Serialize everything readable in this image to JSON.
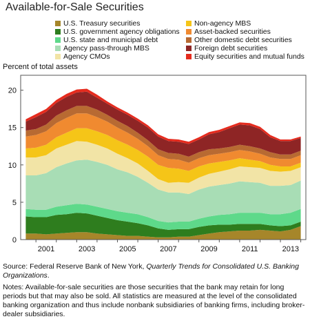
{
  "title": "Available-for-Sale Securities",
  "source_prefix": "Source: Federal Reserve Bank of New York, ",
  "source_title": "Quarterly Trends for Consolidated U.S. Banking Organizations",
  "source_suffix": ".",
  "notes": "Notes: Available-for-sale securities are those securities that the bank may retain for long periods but that may also be sold. All statistics are measured at the level of the consolidated banking organization and thus include nonbank subsidiaries of banking firms, including broker-dealer subsidiaries.",
  "chart_data": {
    "type": "area",
    "stacked": true,
    "title": "Available-for-Sale Securities",
    "ylabel": "Percent of total assets",
    "xlabel": "",
    "ylim": [
      0,
      22
    ],
    "yticks": [
      0,
      5,
      10,
      15,
      20
    ],
    "xlim": [
      2000.25,
      2014.25
    ],
    "xticks": [
      2001,
      2003,
      2005,
      2007,
      2009,
      2011,
      2013
    ],
    "grid": false,
    "legend_position": "top",
    "x": [
      2000.5,
      2001.0,
      2001.5,
      2002.0,
      2002.5,
      2003.0,
      2003.5,
      2004.0,
      2004.5,
      2005.0,
      2005.5,
      2006.0,
      2006.5,
      2007.0,
      2007.5,
      2008.0,
      2008.5,
      2009.0,
      2009.5,
      2010.0,
      2010.5,
      2011.0,
      2011.5,
      2012.0,
      2012.5,
      2013.0,
      2013.5,
      2014.0
    ],
    "series": [
      {
        "name": "U.S. Treasury securities",
        "color": "#a6862a",
        "values": [
          0.8,
          0.8,
          0.7,
          0.8,
          0.9,
          1.0,
          1.0,
          0.8,
          0.7,
          0.6,
          0.5,
          0.5,
          0.4,
          0.3,
          0.3,
          0.4,
          0.4,
          0.6,
          0.8,
          1.0,
          1.1,
          1.2,
          1.2,
          1.3,
          1.2,
          1.1,
          1.3,
          1.8
        ]
      },
      {
        "name": "U.S. government agency obligations",
        "color": "#2e7d1e",
        "values": [
          2.3,
          2.2,
          2.3,
          2.5,
          2.5,
          2.6,
          2.5,
          2.4,
          2.2,
          2.0,
          1.9,
          1.7,
          1.5,
          1.2,
          1.0,
          1.0,
          1.0,
          1.1,
          1.1,
          1.0,
          0.9,
          0.9,
          0.9,
          0.8,
          0.7,
          0.7,
          0.6,
          0.6
        ]
      },
      {
        "name": "U.S. state and municipal debt",
        "color": "#5ed98a",
        "values": [
          1.0,
          1.0,
          1.0,
          1.1,
          1.2,
          1.2,
          1.2,
          1.2,
          1.2,
          1.2,
          1.2,
          1.2,
          1.1,
          1.0,
          1.0,
          1.0,
          1.0,
          1.1,
          1.2,
          1.3,
          1.4,
          1.5,
          1.5,
          1.5,
          1.5,
          1.6,
          1.7,
          1.7
        ]
      },
      {
        "name": "Agency pass-through MBS",
        "color": "#a8ddb5",
        "values": [
          4.5,
          4.6,
          4.9,
          5.3,
          5.6,
          5.8,
          6.0,
          6.0,
          5.9,
          5.6,
          5.4,
          5.0,
          4.6,
          4.2,
          4.0,
          3.9,
          3.7,
          3.9,
          4.0,
          4.0,
          4.1,
          4.2,
          4.1,
          4.0,
          3.8,
          3.8,
          3.7,
          3.8
        ]
      },
      {
        "name": "Agency CMOs",
        "color": "#f2e4a6",
        "values": [
          2.4,
          2.4,
          2.4,
          2.5,
          2.5,
          2.6,
          2.4,
          2.3,
          2.2,
          2.1,
          1.9,
          1.8,
          1.6,
          1.4,
          1.3,
          1.4,
          1.5,
          1.6,
          1.7,
          1.8,
          1.9,
          2.0,
          2.0,
          2.0,
          2.0,
          1.9,
          1.9,
          1.8
        ]
      },
      {
        "name": "Non-agency MBS",
        "color": "#f5c518",
        "values": [
          1.2,
          1.3,
          1.4,
          1.5,
          1.6,
          1.7,
          1.8,
          1.8,
          1.8,
          1.8,
          1.8,
          1.8,
          1.9,
          1.9,
          2.0,
          1.8,
          1.6,
          1.5,
          1.4,
          1.3,
          1.2,
          1.1,
          1.0,
          0.9,
          0.8,
          0.7,
          0.6,
          0.6
        ]
      },
      {
        "name": "Asset-backed securities",
        "color": "#f08a30",
        "values": [
          1.6,
          1.7,
          1.8,
          1.9,
          2.0,
          2.0,
          2.0,
          1.9,
          1.8,
          1.7,
          1.6,
          1.5,
          1.4,
          1.3,
          1.2,
          1.2,
          1.1,
          1.1,
          1.1,
          1.1,
          1.1,
          1.1,
          1.1,
          1.0,
          1.0,
          1.0,
          1.0,
          1.0
        ]
      },
      {
        "name": "Other domestic debt securities",
        "color": "#b86a32",
        "values": [
          0.8,
          0.8,
          0.9,
          1.0,
          1.0,
          1.0,
          1.0,
          1.0,
          0.9,
          0.9,
          0.9,
          0.8,
          0.8,
          0.8,
          0.8,
          0.8,
          0.8,
          0.8,
          0.8,
          0.7,
          0.7,
          0.7,
          0.7,
          0.7,
          0.7,
          0.6,
          0.6,
          0.6
        ]
      },
      {
        "name": "Foreign debt securities",
        "color": "#8e2525",
        "values": [
          1.2,
          1.6,
          1.7,
          1.7,
          1.8,
          1.8,
          1.9,
          1.6,
          1.5,
          1.5,
          1.5,
          1.6,
          1.7,
          1.7,
          1.6,
          1.6,
          1.7,
          1.7,
          2.0,
          2.2,
          2.5,
          2.7,
          2.8,
          2.6,
          2.0,
          1.8,
          1.8,
          1.7
        ]
      },
      {
        "name": "Equity securities and mutual funds",
        "color": "#e52b1e",
        "values": [
          0.3,
          0.4,
          0.4,
          0.4,
          0.4,
          0.4,
          0.4,
          0.4,
          0.3,
          0.3,
          0.3,
          0.3,
          0.3,
          0.3,
          0.3,
          0.3,
          0.3,
          0.3,
          0.3,
          0.3,
          0.3,
          0.3,
          0.3,
          0.3,
          0.3,
          0.2,
          0.2,
          0.2
        ]
      }
    ]
  }
}
